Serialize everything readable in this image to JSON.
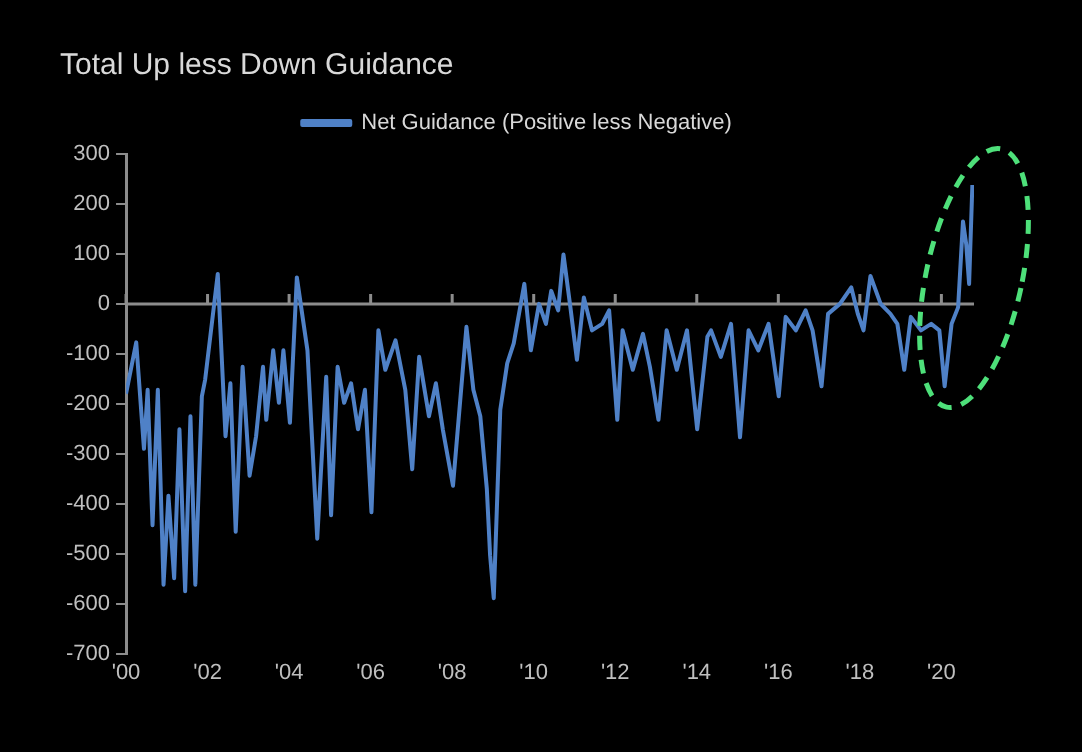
{
  "chart_data": {
    "type": "line",
    "title": "Total Up less Down Guidance",
    "x": [
      2000.0,
      2000.25,
      2000.44,
      2000.53,
      2000.65,
      2000.78,
      2000.92,
      2001.04,
      2001.18,
      2001.31,
      2001.45,
      2001.58,
      2001.7,
      2001.86,
      2001.94,
      2002.25,
      2002.44,
      2002.56,
      2002.69,
      2002.86,
      2003.03,
      2003.19,
      2003.36,
      2003.44,
      2003.61,
      2003.75,
      2003.86,
      2004.02,
      2004.19,
      2004.45,
      2004.69,
      2004.91,
      2005.03,
      2005.19,
      2005.35,
      2005.52,
      2005.69,
      2005.86,
      2006.02,
      2006.19,
      2006.36,
      2006.61,
      2006.85,
      2007.02,
      2007.19,
      2007.43,
      2007.6,
      2007.77,
      2008.02,
      2008.35,
      2008.52,
      2008.69,
      2008.85,
      2008.93,
      2009.02,
      2009.18,
      2009.35,
      2009.51,
      2009.77,
      2009.93,
      2010.13,
      2010.3,
      2010.43,
      2010.6,
      2010.73,
      2010.9,
      2011.06,
      2011.23,
      2011.43,
      2011.68,
      2011.85,
      2012.05,
      2012.18,
      2012.43,
      2012.68,
      2012.85,
      2013.06,
      2013.26,
      2013.51,
      2013.76,
      2014.01,
      2014.26,
      2014.35,
      2014.59,
      2014.84,
      2015.06,
      2015.27,
      2015.51,
      2015.76,
      2016.01,
      2016.18,
      2016.43,
      2016.67,
      2016.84,
      2017.06,
      2017.22,
      2017.51,
      2017.79,
      2017.95,
      2018.09,
      2018.26,
      2018.51,
      2018.75,
      2018.92,
      2019.09,
      2019.25,
      2019.5,
      2019.75,
      2019.95,
      2020.08,
      2020.25,
      2020.41,
      2020.53,
      2020.61,
      2020.68,
      2020.76
    ],
    "series": [
      {
        "name": "Net Guidance (Positive less Negative)",
        "color": "#4f81c7",
        "values": [
          -180,
          -77,
          -290,
          -172,
          -443,
          -172,
          -562,
          -384,
          -549,
          -251,
          -575,
          -225,
          -562,
          -185,
          -152,
          60,
          -265,
          -159,
          -456,
          -126,
          -344,
          -265,
          -126,
          -232,
          -93,
          -198,
          -93,
          -238,
          53,
          -93,
          -470,
          -146,
          -423,
          -126,
          -198,
          -159,
          -251,
          -172,
          -417,
          -53,
          -132,
          -73,
          -172,
          -331,
          -106,
          -225,
          -159,
          -251,
          -364,
          -46,
          -172,
          -225,
          -370,
          -503,
          -589,
          -212,
          -119,
          -79,
          40,
          -93,
          0,
          -40,
          26,
          -13,
          99,
          -7,
          -112,
          13,
          -53,
          -40,
          -13,
          -232,
          -53,
          -132,
          -60,
          -126,
          -232,
          -53,
          -132,
          -53,
          -251,
          -66,
          -53,
          -106,
          -40,
          -267,
          -53,
          -93,
          -40,
          -185,
          -26,
          -53,
          -13,
          -53,
          -165,
          -20,
          0,
          33,
          -20,
          -53,
          56,
          0,
          -20,
          -40,
          -132,
          -26,
          -53,
          -40,
          -53,
          -165,
          -40,
          -7,
          165,
          119,
          40,
          238
        ]
      }
    ],
    "xlim": [
      2000,
      2020.8
    ],
    "xticks": [
      {
        "value": 2000,
        "label": "'00"
      },
      {
        "value": 2002,
        "label": "'02"
      },
      {
        "value": 2004,
        "label": "'04"
      },
      {
        "value": 2006,
        "label": "'06"
      },
      {
        "value": 2008,
        "label": "'08"
      },
      {
        "value": 2010,
        "label": "'10"
      },
      {
        "value": 2012,
        "label": "'12"
      },
      {
        "value": 2014,
        "label": "'14"
      },
      {
        "value": 2016,
        "label": "'16"
      },
      {
        "value": 2018,
        "label": "'18"
      },
      {
        "value": 2020,
        "label": "'20"
      }
    ],
    "ylim": [
      -700,
      300
    ],
    "yticks": [
      -700,
      -600,
      -500,
      -400,
      -300,
      -200,
      -100,
      0,
      100,
      200,
      300
    ],
    "ref_lines": [
      {
        "axis": "y",
        "value": 0,
        "color": "#8c8c8c"
      }
    ],
    "grid": false,
    "legend": "top",
    "marker": "none",
    "line_style": "solid"
  }
}
